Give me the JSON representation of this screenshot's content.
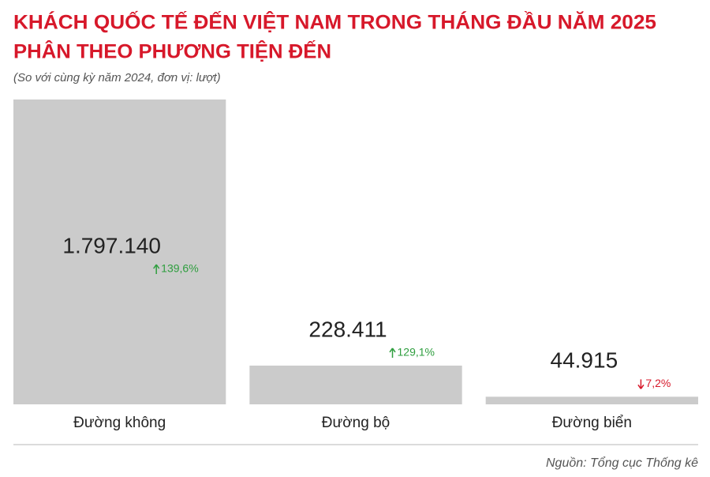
{
  "chart_data": {
    "type": "bar",
    "title": "KHÁCH QUỐC TẾ ĐẾN VIỆT NAM TRONG THÁNG ĐẦU NĂM 2025",
    "title_line2": "PHÂN THEO PHƯƠNG TIỆN ĐẾN",
    "subtitle": "(So với cùng kỳ năm 2024, đơn vị: lượt)",
    "categories": [
      "Đường không",
      "Đường bộ",
      "Đường biển"
    ],
    "values": [
      1797140,
      228411,
      44915
    ],
    "value_labels": [
      "1.797.140",
      "228.411",
      "44.915"
    ],
    "changes": [
      139.6,
      129.1,
      -7.2
    ],
    "change_labels": [
      "139,6%",
      "129,1%",
      "7,2%"
    ],
    "color": "#cbcbcb",
    "up_color": "#2e9e3e",
    "down_color": "#d7182a",
    "source": "Nguồn: Tổng cục Thống kê"
  }
}
